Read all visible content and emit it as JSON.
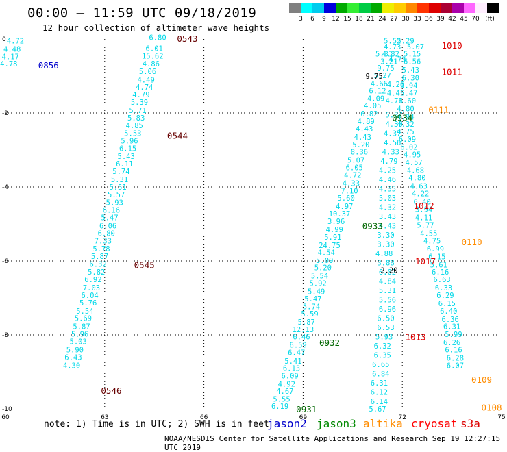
{
  "header": {
    "title": "00:00 – 11:59 UTC 09/18/2019",
    "subtitle": "12 hour collection of altimeter wave heights"
  },
  "colorbar": {
    "colors": [
      "#808080",
      "#00ffff",
      "#00ccee",
      "#0000dd",
      "#00aa00",
      "#33ee33",
      "#00cc44",
      "#00aa00",
      "#eeee00",
      "#ffcc00",
      "#ff8800",
      "#ff3300",
      "#dd0000",
      "#aa0033",
      "#aa00aa",
      "#ff66ff",
      "#ffeeff",
      "#000000"
    ],
    "labels": [
      "3",
      "6",
      "9",
      "12",
      "15",
      "18",
      "21",
      "24",
      "27",
      "30",
      "33",
      "36",
      "39",
      "42",
      "45",
      "70"
    ],
    "unit": "(ft)"
  },
  "footer": {
    "note": "note: 1) Time is in UTC; 2) SWH is in feet",
    "credit": "NOAA/NESDIS Center for Satellite Applications and Research    Sep 19 12:27:15 UTC 2019"
  },
  "legend": [
    {
      "name": "jason2",
      "color": "#0000cc"
    },
    {
      "name": "jason3",
      "color": "#008800"
    },
    {
      "name": "altika",
      "color": "#ff8c00"
    },
    {
      "name": "cryosat",
      "color": "#ff0000"
    },
    {
      "name": "s3a",
      "color": "#dd0000"
    }
  ],
  "chart_data": {
    "type": "scatter",
    "xlim": [
      60,
      75
    ],
    "ylim": [
      -10,
      0
    ],
    "x_ticks": [
      "60",
      "63",
      "66",
      "69",
      "72",
      "75"
    ],
    "y_ticks": [
      "0",
      "-2",
      "-4",
      "-6",
      "-8",
      "-10"
    ],
    "grid": true,
    "series": [
      {
        "name": "track-a",
        "color": "#00d8e8",
        "points": [
          [
            60.3,
            -0.05,
            "4.72"
          ],
          [
            60.2,
            -0.27,
            "4.48"
          ],
          [
            60.15,
            -0.47,
            "4.17"
          ],
          [
            60.1,
            -0.67,
            "4.78"
          ]
        ]
      },
      {
        "name": "track-b",
        "color": "#00d8e8",
        "points": [
          [
            64.6,
            0.05,
            "6.80"
          ],
          [
            64.5,
            -0.25,
            "6.01"
          ],
          [
            64.45,
            -0.45,
            "15.62"
          ],
          [
            64.4,
            -0.67,
            "4.86"
          ],
          [
            64.3,
            -0.87,
            "5.06"
          ],
          [
            64.25,
            -1.1,
            "4.49"
          ],
          [
            64.2,
            -1.3,
            "4.74"
          ],
          [
            64.1,
            -1.5,
            "4.79"
          ],
          [
            64.05,
            -1.7,
            "5.39"
          ],
          [
            64.0,
            -1.93,
            "5.71"
          ],
          [
            63.95,
            -2.13,
            "5.83"
          ],
          [
            63.9,
            -2.33,
            "4.85"
          ],
          [
            63.85,
            -2.55,
            "5.53"
          ],
          [
            63.75,
            -2.75,
            "5.96"
          ],
          [
            63.7,
            -2.95,
            "6.15"
          ],
          [
            63.65,
            -3.17,
            "5.43"
          ],
          [
            63.6,
            -3.37,
            "6.11"
          ],
          [
            63.5,
            -3.57,
            "5.74"
          ],
          [
            63.45,
            -3.8,
            "5.31"
          ],
          [
            63.4,
            -4.0,
            "5.51"
          ],
          [
            63.35,
            -4.2,
            "5.57"
          ],
          [
            63.3,
            -4.42,
            "5.93"
          ],
          [
            63.2,
            -4.62,
            "6.16"
          ],
          [
            63.15,
            -4.82,
            "5.47"
          ],
          [
            63.1,
            -5.05,
            "6.06"
          ],
          [
            63.05,
            -5.25,
            "6.80"
          ],
          [
            62.95,
            -5.45,
            "7.33"
          ],
          [
            62.9,
            -5.67,
            "5.78"
          ],
          [
            62.85,
            -5.87,
            "5.87"
          ],
          [
            62.8,
            -6.08,
            "6.32"
          ],
          [
            62.75,
            -6.3,
            "5.82"
          ],
          [
            62.65,
            -6.5,
            "6.92"
          ],
          [
            62.6,
            -6.72,
            "7.03"
          ],
          [
            62.55,
            -6.93,
            "6.04"
          ],
          [
            62.5,
            -7.13,
            "5.76"
          ],
          [
            62.4,
            -7.35,
            "5.54"
          ],
          [
            62.35,
            -7.55,
            "5.69"
          ],
          [
            62.3,
            -7.77,
            "5.87"
          ],
          [
            62.25,
            -7.97,
            "5.96"
          ],
          [
            62.2,
            -8.18,
            "5.03"
          ],
          [
            62.1,
            -8.4,
            "5.90"
          ],
          [
            62.05,
            -8.6,
            "6.43"
          ],
          [
            62.0,
            -8.82,
            "4.30"
          ]
        ]
      },
      {
        "name": "track-c",
        "color": "#00d8e8",
        "points": [
          [
            71.7,
            -0.05,
            "5.52"
          ],
          [
            71.7,
            -0.2,
            "4.73"
          ],
          [
            71.65,
            -0.4,
            "4.82"
          ],
          [
            71.6,
            -0.6,
            "3.21"
          ],
          [
            71.5,
            -0.78,
            "9.75"
          ],
          [
            71.4,
            -0.98,
            "5.27"
          ],
          [
            71.3,
            -1.2,
            "4.66"
          ],
          [
            71.25,
            -1.4,
            "6.12"
          ],
          [
            71.2,
            -1.6,
            "4.09"
          ],
          [
            71.1,
            -1.8,
            "4.05"
          ],
          [
            71.0,
            -2.02,
            "6.82"
          ],
          [
            70.9,
            -2.22,
            "4.89"
          ],
          [
            70.85,
            -2.43,
            "4.43"
          ],
          [
            70.8,
            -2.65,
            "4.43"
          ],
          [
            70.75,
            -2.85,
            "5.20"
          ],
          [
            70.7,
            -3.05,
            "8.36"
          ],
          [
            70.6,
            -3.27,
            "5.07"
          ],
          [
            70.55,
            -3.47,
            "6.05"
          ],
          [
            70.5,
            -3.68,
            "4.72"
          ],
          [
            70.45,
            -3.9,
            "4.33"
          ],
          [
            70.4,
            -4.1,
            "7.10"
          ],
          [
            70.3,
            -4.3,
            "5.60"
          ],
          [
            70.25,
            -4.52,
            "4.97"
          ],
          [
            70.1,
            -4.72,
            "10.37"
          ],
          [
            70.0,
            -4.93,
            "3.96"
          ],
          [
            69.95,
            -5.15,
            "4.99"
          ],
          [
            69.9,
            -5.35,
            "5.91"
          ],
          [
            69.8,
            -5.57,
            "24.75"
          ],
          [
            69.7,
            -5.77,
            "4.54"
          ],
          [
            69.65,
            -5.98,
            "5.09"
          ],
          [
            69.6,
            -6.18,
            "5.20"
          ],
          [
            69.5,
            -6.4,
            "5.54"
          ],
          [
            69.45,
            -6.6,
            "5.92"
          ],
          [
            69.4,
            -6.82,
            "5.49"
          ],
          [
            69.3,
            -7.02,
            "5.47"
          ],
          [
            69.25,
            -7.23,
            "5.74"
          ],
          [
            69.2,
            -7.43,
            "5.59"
          ],
          [
            69.1,
            -7.65,
            "5.87"
          ],
          [
            69.0,
            -7.85,
            "12.13"
          ],
          [
            68.95,
            -8.05,
            "6.46"
          ],
          [
            68.85,
            -8.27,
            "6.59"
          ],
          [
            68.8,
            -8.47,
            "6.47"
          ],
          [
            68.7,
            -8.7,
            "5.41"
          ],
          [
            68.65,
            -8.9,
            "6.13"
          ],
          [
            68.6,
            -9.1,
            "6.09"
          ],
          [
            68.5,
            -9.32,
            "4.92"
          ],
          [
            68.45,
            -9.52,
            "4.67"
          ],
          [
            68.35,
            -9.73,
            "5.55"
          ],
          [
            68.3,
            -9.93,
            "6.19"
          ]
        ]
      },
      {
        "name": "track-d",
        "color": "#00d8e8",
        "points": [
          [
            72.1,
            -0.05,
            "5.29"
          ],
          [
            72.4,
            -0.2,
            "5.07"
          ],
          [
            72.3,
            -0.4,
            "5.15"
          ],
          [
            72.3,
            -0.6,
            "6.56"
          ],
          [
            72.25,
            -0.83,
            "5.43"
          ],
          [
            72.25,
            -1.05,
            "6.30"
          ],
          [
            72.2,
            -1.25,
            "3.94"
          ],
          [
            72.2,
            -1.45,
            "6.47"
          ],
          [
            72.15,
            -1.67,
            "6.60"
          ],
          [
            72.1,
            -1.88,
            "4.80"
          ],
          [
            72.1,
            -2.1,
            "4.94"
          ],
          [
            72.1,
            -2.3,
            "4.32"
          ],
          [
            72.1,
            -2.5,
            "4.75"
          ],
          [
            72.15,
            -2.7,
            "6.09"
          ],
          [
            72.2,
            -2.92,
            "6.02"
          ],
          [
            72.3,
            -3.12,
            "4.95"
          ],
          [
            72.35,
            -3.33,
            "4.57"
          ],
          [
            72.4,
            -3.55,
            "4.68"
          ],
          [
            72.45,
            -3.75,
            "4.80"
          ],
          [
            72.5,
            -3.97,
            "4.63"
          ],
          [
            72.55,
            -4.18,
            "4.22"
          ],
          [
            72.6,
            -4.4,
            "6.40"
          ],
          [
            72.65,
            -4.6,
            "3.94"
          ],
          [
            72.65,
            -4.82,
            "4.11"
          ],
          [
            72.7,
            -5.03,
            "5.77"
          ],
          [
            72.8,
            -5.25,
            "4.55"
          ],
          [
            72.9,
            -5.45,
            "4.75"
          ],
          [
            73.0,
            -5.67,
            "6.99"
          ],
          [
            73.05,
            -5.88,
            "6.15"
          ],
          [
            73.1,
            -6.1,
            "5.61"
          ],
          [
            73.15,
            -6.3,
            "6.16"
          ],
          [
            73.2,
            -6.5,
            "6.63"
          ],
          [
            73.25,
            -6.72,
            "6.33"
          ],
          [
            73.3,
            -6.93,
            "6.29"
          ],
          [
            73.35,
            -7.15,
            "6.15"
          ],
          [
            73.4,
            -7.35,
            "6.40"
          ],
          [
            73.45,
            -7.57,
            "6.36"
          ],
          [
            73.5,
            -7.77,
            "6.31"
          ],
          [
            73.55,
            -7.98,
            "5.99"
          ],
          [
            73.5,
            -8.2,
            "6.26"
          ],
          [
            73.55,
            -8.4,
            "6.16"
          ],
          [
            73.6,
            -8.62,
            "6.28"
          ],
          [
            73.6,
            -8.82,
            "6.07"
          ]
        ]
      },
      {
        "name": "track-e",
        "color": "#00d8e8",
        "points": [
          [
            71.45,
            -0.4,
            "5.31"
          ],
          [
            71.85,
            -0.55,
            "4.73"
          ],
          [
            71.8,
            -1.22,
            "4.26"
          ],
          [
            71.8,
            -1.45,
            "4.45"
          ],
          [
            71.75,
            -1.67,
            "4.71"
          ],
          [
            71.75,
            -2.05,
            "5.37"
          ],
          [
            71.75,
            -2.3,
            "4.30"
          ],
          [
            71.7,
            -2.55,
            "4.37"
          ],
          [
            71.7,
            -2.8,
            "4.56"
          ],
          [
            71.65,
            -3.05,
            "4.33"
          ],
          [
            71.6,
            -3.3,
            "4.79"
          ],
          [
            71.55,
            -3.55,
            "4.25"
          ],
          [
            71.55,
            -3.8,
            "4.46"
          ],
          [
            71.55,
            -4.05,
            "4.35"
          ],
          [
            71.55,
            -4.3,
            "5.03"
          ],
          [
            71.55,
            -4.55,
            "4.32"
          ],
          [
            71.55,
            -4.8,
            "3.43"
          ],
          [
            71.55,
            -5.05,
            "4.43"
          ],
          [
            71.5,
            -5.3,
            "3.30"
          ],
          [
            71.5,
            -5.55,
            "3.30"
          ],
          [
            71.45,
            -5.8,
            "4.88"
          ],
          [
            71.5,
            -6.05,
            "3.88"
          ],
          [
            71.55,
            -6.3,
            "6.02"
          ],
          [
            71.55,
            -6.55,
            "4.84"
          ],
          [
            71.55,
            -6.8,
            "5.31"
          ],
          [
            71.55,
            -7.05,
            "5.56"
          ],
          [
            71.55,
            -7.3,
            "6.96"
          ],
          [
            71.5,
            -7.55,
            "6.50"
          ],
          [
            71.5,
            -7.8,
            "6.53"
          ],
          [
            71.45,
            -8.05,
            "5.93"
          ],
          [
            71.4,
            -8.3,
            "6.32"
          ],
          [
            71.4,
            -8.55,
            "6.35"
          ],
          [
            71.35,
            -8.8,
            "6.65"
          ],
          [
            71.35,
            -9.05,
            "6.84"
          ],
          [
            71.3,
            -9.3,
            "6.31"
          ],
          [
            71.3,
            -9.55,
            "6.12"
          ],
          [
            71.3,
            -9.8,
            "6.14"
          ],
          [
            71.25,
            -10.0,
            "5.67"
          ]
        ]
      },
      {
        "name": "misc",
        "color": "#000000",
        "points": [
          [
            71.6,
            -6.25,
            "2.20"
          ],
          [
            71.15,
            -1.0,
            "9.75"
          ]
        ]
      }
    ],
    "time_labels": [
      {
        "x": 61.3,
        "y": -0.7,
        "text": "0856",
        "color": "#0000cc"
      },
      {
        "x": 65.5,
        "y": 0.02,
        "text": "0543",
        "color": "#660000"
      },
      {
        "x": 65.2,
        "y": -2.6,
        "text": "0544",
        "color": "#660000"
      },
      {
        "x": 64.2,
        "y": -6.1,
        "text": "0545",
        "color": "#660000"
      },
      {
        "x": 63.2,
        "y": -9.5,
        "text": "0546",
        "color": "#660000"
      },
      {
        "x": 73.5,
        "y": -0.17,
        "text": "1010",
        "color": "#dd0000"
      },
      {
        "x": 73.5,
        "y": -0.88,
        "text": "1011",
        "color": "#dd0000"
      },
      {
        "x": 73.1,
        "y": -1.9,
        "text": "0111",
        "color": "#ff8c00"
      },
      {
        "x": 72.0,
        "y": -2.12,
        "text": "0934",
        "color": "#006600"
      },
      {
        "x": 72.65,
        "y": -4.5,
        "text": "1012",
        "color": "#dd0000"
      },
      {
        "x": 71.1,
        "y": -5.05,
        "text": "0933",
        "color": "#006600"
      },
      {
        "x": 74.1,
        "y": -5.48,
        "text": "0110",
        "color": "#ff8c00"
      },
      {
        "x": 72.7,
        "y": -6.0,
        "text": "1017",
        "color": "#dd0000"
      },
      {
        "x": 69.8,
        "y": -8.2,
        "text": "0932",
        "color": "#006600"
      },
      {
        "x": 72.4,
        "y": -8.05,
        "text": "1013",
        "color": "#dd0000"
      },
      {
        "x": 74.4,
        "y": -9.2,
        "text": "0109",
        "color": "#ff8c00"
      },
      {
        "x": 74.7,
        "y": -9.95,
        "text": "0108",
        "color": "#ff8c00"
      },
      {
        "x": 69.1,
        "y": -10.0,
        "text": "0931",
        "color": "#006600"
      }
    ]
  }
}
